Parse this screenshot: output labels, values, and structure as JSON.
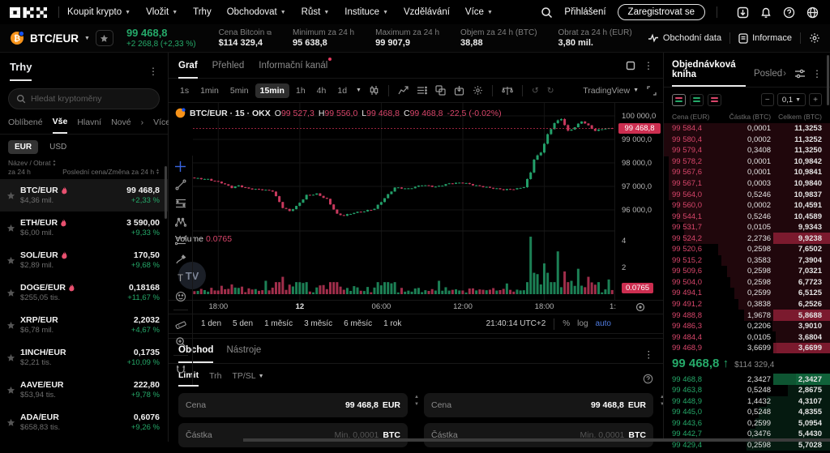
{
  "colors": {
    "up": "#25a969",
    "down": "#d9466b",
    "candle_up": "#23a06a",
    "candle_down": "#c9395e",
    "badge_red": "#cc2e50",
    "accent_blue": "#4f7bdf"
  },
  "topnav": {
    "logo": "OKX",
    "items": [
      {
        "label": "Koupit krypto",
        "caret": true
      },
      {
        "label": "Vložit",
        "caret": true
      },
      {
        "label": "Trhy",
        "caret": false
      },
      {
        "label": "Obchodovat",
        "caret": true
      },
      {
        "label": "Růst",
        "caret": true
      },
      {
        "label": "Instituce",
        "caret": true
      },
      {
        "label": "Vzdělávání",
        "caret": false
      },
      {
        "label": "Více",
        "caret": true
      }
    ],
    "login": "Přihlášení",
    "signup": "Zaregistrovat se"
  },
  "ticker": {
    "pair": "BTC/EUR",
    "price": "99 468,8",
    "change": "+2 268,8 (+2,33 %)",
    "stats": [
      {
        "label": "Cena Bitcoin",
        "value": "$114 329,4",
        "external": true
      },
      {
        "label": "Minimum za 24 h",
        "value": "95 638,8",
        "external": false
      },
      {
        "label": "Maximum za 24 h",
        "value": "99 907,9",
        "external": false
      },
      {
        "label": "Objem za 24 h (BTC)",
        "value": "38,88",
        "external": false
      },
      {
        "label": "Obrat za 24 h (EUR)",
        "value": "3,80 mil.",
        "external": false
      }
    ],
    "action1": "Obchodní data",
    "action2": "Informace"
  },
  "sidebar": {
    "title": "Trhy",
    "search_placeholder": "Hledat kryptoměny",
    "tabs": [
      {
        "label": "Oblíbené",
        "active": false
      },
      {
        "label": "Vše",
        "active": true
      },
      {
        "label": "Hlavní",
        "active": false
      },
      {
        "label": "Nové",
        "active": false
      }
    ],
    "more_tab": "Více",
    "currencies": [
      {
        "label": "EUR",
        "active": true
      },
      {
        "label": "USD",
        "active": false
      }
    ],
    "col1a": "Název / Obrat",
    "col1b": "za 24 h",
    "col2": "Poslední cena/Změna za 24 h",
    "rows": [
      {
        "pair": "BTC/EUR",
        "hot": true,
        "vol": "$4,36 mil.",
        "price": "99 468,8",
        "change": "+2,33 %",
        "active": true
      },
      {
        "pair": "ETH/EUR",
        "hot": true,
        "vol": "$6,00 mil.",
        "price": "3 590,00",
        "change": "+9,33 %",
        "active": false
      },
      {
        "pair": "SOL/EUR",
        "hot": true,
        "vol": "$2,89 mil.",
        "price": "170,50",
        "change": "+9,68 %",
        "active": false
      },
      {
        "pair": "DOGE/EUR",
        "hot": true,
        "vol": "$255,05 tis.",
        "price": "0,18168",
        "change": "+11,67 %",
        "active": false
      },
      {
        "pair": "XRP/EUR",
        "hot": false,
        "vol": "$6,78 mil.",
        "price": "2,2032",
        "change": "+4,67 %",
        "active": false
      },
      {
        "pair": "1INCH/EUR",
        "hot": false,
        "vol": "$2,21 tis.",
        "price": "0,1735",
        "change": "+10,09 %",
        "active": false
      },
      {
        "pair": "AAVE/EUR",
        "hot": false,
        "vol": "$53,94 tis.",
        "price": "222,80",
        "change": "+9,78 %",
        "active": false
      },
      {
        "pair": "ADA/EUR",
        "hot": false,
        "vol": "$658,83 tis.",
        "price": "0,6076",
        "change": "+9,26 %",
        "active": false
      }
    ]
  },
  "chart": {
    "tabs": [
      {
        "label": "Graf",
        "active": true,
        "dot": false
      },
      {
        "label": "Přehled",
        "active": false,
        "dot": false
      },
      {
        "label": "Informační kanál",
        "active": false,
        "dot": true
      }
    ],
    "timeframes": [
      "1s",
      "1min",
      "5min",
      "15min",
      "1h",
      "4h",
      "1d"
    ],
    "active_timeframe": "15min",
    "provider": "TradingView",
    "legend": {
      "title": "BTC/EUR · 15 · OKX",
      "o_l": "O",
      "o": "99 527,3",
      "h_l": "H",
      "h": "99 556,0",
      "l_l": "L",
      "l": "99 468,8",
      "c_l": "C",
      "c": "99 468,8",
      "chg": "-22,5 (-0.02%)"
    },
    "volume_label": "Volume",
    "volume_value": "0.0765",
    "price_ticks": [
      "100 000,0",
      "99 000,0",
      "98 000,0",
      "97 000,0",
      "96 000,0"
    ],
    "last_price_label": "99 468,8",
    "last_price": 99468.8,
    "vol_ticks": [
      "4",
      "2"
    ],
    "vol_badge": "0.0765",
    "time_ticks": [
      {
        "label": "18:00",
        "idx": 7
      },
      {
        "label": "12",
        "idx": 31,
        "bold": true
      },
      {
        "label": "06:00",
        "idx": 55
      },
      {
        "label": "12:00",
        "idx": 79
      },
      {
        "label": "18:00",
        "idx": 103
      }
    ],
    "time_partial": "1:",
    "ranges": [
      "1 den",
      "5 den",
      "1 měsíc",
      "3 měsíc",
      "6 měsíc",
      "1 rok"
    ],
    "clock": "21:40:14 UTC+2",
    "scale_opts": [
      {
        "label": "%",
        "on": false
      },
      {
        "label": "log",
        "on": false
      },
      {
        "label": "auto",
        "on": true
      }
    ],
    "watermark": "TV",
    "chart_data": {
      "type": "candlestick",
      "interval": "15min",
      "n_candles": 124,
      "y_axis_range": [
        95500,
        100400
      ],
      "close_anchors": [
        [
          0,
          97350
        ],
        [
          4,
          97300
        ],
        [
          8,
          97150
        ],
        [
          11,
          96950
        ],
        [
          13,
          97030
        ],
        [
          16,
          96900
        ],
        [
          20,
          96860
        ],
        [
          23,
          96800
        ],
        [
          26,
          96100
        ],
        [
          28,
          95950
        ],
        [
          30,
          96150
        ],
        [
          33,
          96620
        ],
        [
          36,
          96680
        ],
        [
          39,
          96450
        ],
        [
          42,
          95820
        ],
        [
          44,
          95760
        ],
        [
          47,
          95880
        ],
        [
          50,
          95940
        ],
        [
          53,
          96050
        ],
        [
          56,
          96500
        ],
        [
          59,
          96950
        ],
        [
          63,
          96900
        ],
        [
          67,
          97060
        ],
        [
          71,
          96980
        ],
        [
          75,
          97120
        ],
        [
          79,
          97160
        ],
        [
          83,
          97030
        ],
        [
          87,
          96940
        ],
        [
          91,
          96860
        ],
        [
          95,
          96900
        ],
        [
          97,
          96980
        ],
        [
          99,
          97600
        ],
        [
          100,
          98150
        ],
        [
          102,
          98450
        ],
        [
          104,
          99200
        ],
        [
          106,
          99700
        ],
        [
          108,
          99880
        ],
        [
          110,
          99350
        ],
        [
          112,
          99520
        ],
        [
          114,
          99780
        ],
        [
          116,
          99580
        ],
        [
          118,
          99360
        ],
        [
          120,
          99450
        ],
        [
          123,
          99468.8
        ]
      ],
      "volume_spikes": {
        "21": 1.0,
        "26": 1.3,
        "30": 0.9,
        "47": 0.6,
        "56": 0.9,
        "72": 1.0,
        "92": 0.8,
        "99": 4.3,
        "100": 1.6,
        "101": 1.5,
        "103": 2.3,
        "104": 1.6,
        "107": 3.2,
        "109": 1.7,
        "111": 1.0,
        "113": 1.9,
        "116": 1.3,
        "119": 0.9,
        "122": 1.1
      }
    }
  },
  "orderbook": {
    "title": "Objednávková kniha",
    "title2": "Posled",
    "grouping": "0,1",
    "minus": "−",
    "plus": "+",
    "cols": [
      "Cena (EUR)",
      "Částka (BTC)",
      "Celkem (BTC)"
    ],
    "max_total": 11.3253,
    "asks": [
      {
        "p": "99 584,4",
        "a": "0,0001",
        "t": "11,3253"
      },
      {
        "p": "99 580,4",
        "a": "0,0002",
        "t": "11,3252"
      },
      {
        "p": "99 579,4",
        "a": "0,3408",
        "t": "11,3250"
      },
      {
        "p": "99 578,2",
        "a": "0,0001",
        "t": "10,9842"
      },
      {
        "p": "99 567,6",
        "a": "0,0001",
        "t": "10,9841"
      },
      {
        "p": "99 567,1",
        "a": "0,0003",
        "t": "10,9840"
      },
      {
        "p": "99 564,0",
        "a": "0,5246",
        "t": "10,9837"
      },
      {
        "p": "99 560,0",
        "a": "0,0002",
        "t": "10,4591"
      },
      {
        "p": "99 544,1",
        "a": "0,5246",
        "t": "10,4589"
      },
      {
        "p": "99 531,7",
        "a": "0,0105",
        "t": "9,9343"
      },
      {
        "p": "99 524,2",
        "a": "2,2736",
        "t": "9,9238",
        "flash": true
      },
      {
        "p": "99 520,6",
        "a": "0,2598",
        "t": "7,6502"
      },
      {
        "p": "99 515,2",
        "a": "0,3583",
        "t": "7,3904"
      },
      {
        "p": "99 509,6",
        "a": "0,2598",
        "t": "7,0321"
      },
      {
        "p": "99 504,0",
        "a": "0,2598",
        "t": "6,7723"
      },
      {
        "p": "99 494,1",
        "a": "0,2599",
        "t": "6,5125"
      },
      {
        "p": "99 491,2",
        "a": "0,3838",
        "t": "6,2526"
      },
      {
        "p": "99 488,8",
        "a": "1,9678",
        "t": "5,8688",
        "flash": true
      },
      {
        "p": "99 486,3",
        "a": "0,2206",
        "t": "3,9010"
      },
      {
        "p": "99 484,4",
        "a": "0,0105",
        "t": "3,6804"
      },
      {
        "p": "99 468,9",
        "a": "3,6699",
        "t": "3,6699",
        "flash": true
      }
    ],
    "mid": {
      "price": "99 468,8",
      "arrow": "↑",
      "usd": "$114 329,4"
    },
    "bids": [
      {
        "p": "99 468,8",
        "a": "2,3427",
        "t": "2,3427",
        "flash": true
      },
      {
        "p": "99 463,8",
        "a": "0,5248",
        "t": "2,8675"
      },
      {
        "p": "99 448,9",
        "a": "1,4432",
        "t": "4,3107"
      },
      {
        "p": "99 445,0",
        "a": "0,5248",
        "t": "4,8355"
      },
      {
        "p": "99 443,6",
        "a": "0,2599",
        "t": "5,0954"
      },
      {
        "p": "99 442,7",
        "a": "0,3476",
        "t": "5,4430"
      },
      {
        "p": "99 429,4",
        "a": "0,2598",
        "t": "5,7028"
      }
    ]
  },
  "trade": {
    "tabs": [
      {
        "label": "Obchod",
        "active": true
      },
      {
        "label": "Nástroje",
        "active": false
      }
    ],
    "order_types": [
      {
        "label": "Limit",
        "active": true,
        "caret": false
      },
      {
        "label": "Trh",
        "active": false,
        "caret": false
      },
      {
        "label": "TP/SL",
        "active": false,
        "caret": true
      }
    ],
    "price_label": "Cena",
    "price_value": "99 468,8",
    "price_unit": "EUR",
    "amount_label": "Částka",
    "amount_placeholder": "Min. 0,0001",
    "amount_unit": "BTC"
  }
}
